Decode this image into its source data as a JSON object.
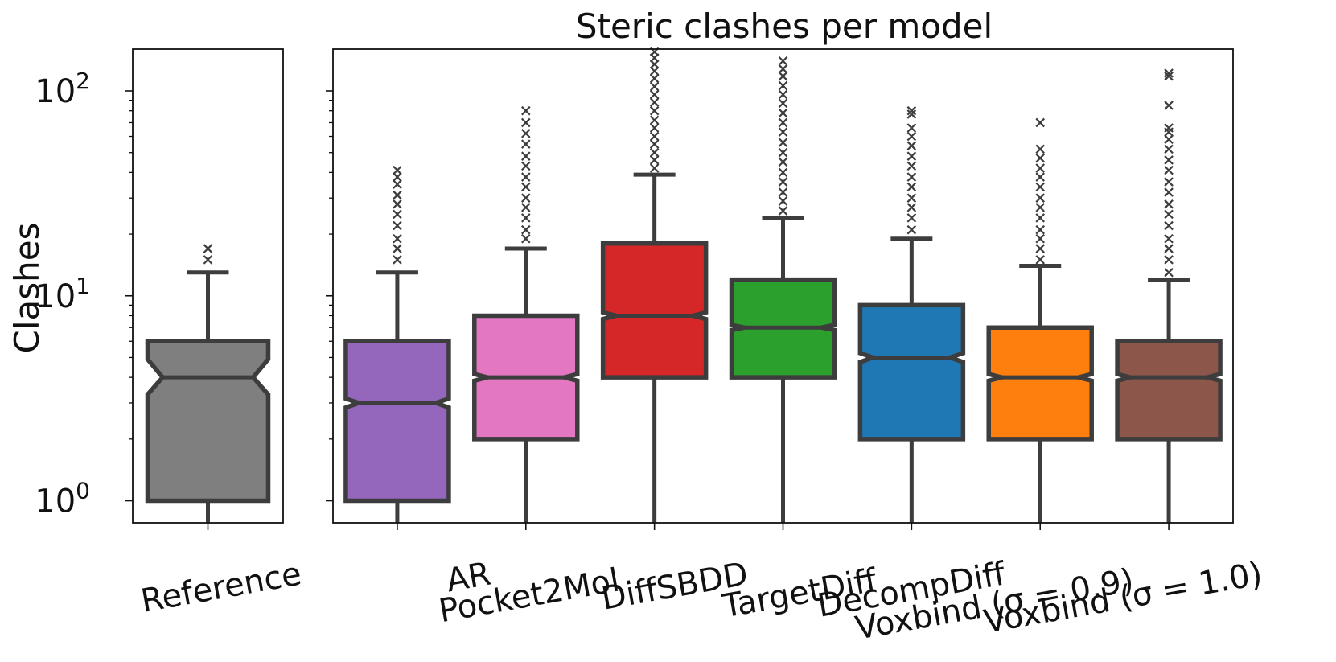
{
  "chart_data": {
    "type": "boxplot",
    "title": "Steric clashes per model",
    "ylabel": "Clashes",
    "yscale": "log",
    "ylim": [
      0.78,
      160
    ],
    "yticks": [
      {
        "value": 1,
        "base": "10",
        "exp": "0"
      },
      {
        "value": 10,
        "base": "10",
        "exp": "1"
      },
      {
        "value": 100,
        "base": "10",
        "exp": "2"
      }
    ],
    "notched": true,
    "panels": [
      {
        "name": "reference",
        "boxes": [
          {
            "label": "Reference",
            "color": "#7f7f7f",
            "q1": 1,
            "median": 4,
            "q3": 6,
            "notch_low": 3.3,
            "notch_high": 4.9,
            "whisker_low": 0.78,
            "whisker_high": 13,
            "outliers": [
              15,
              17
            ]
          }
        ]
      },
      {
        "name": "models",
        "boxes": [
          {
            "label": "AR",
            "color": "#9467bd",
            "q1": 1,
            "median": 3,
            "q3": 6,
            "notch_low": 2.85,
            "notch_high": 3.15,
            "whisker_low": 0.78,
            "whisker_high": 13,
            "outliers": [
              15,
              17,
              19,
              22,
              25,
              28,
              31,
              35,
              38,
              41
            ]
          },
          {
            "label": "Pocket2Mol",
            "color": "#e377c2",
            "q1": 2,
            "median": 4,
            "q3": 8,
            "notch_low": 3.85,
            "notch_high": 4.15,
            "whisker_low": 0.78,
            "whisker_high": 17,
            "outliers": [
              19,
              21,
              24,
              27,
              30,
              34,
              38,
              43,
              48,
              55,
              62,
              70,
              80
            ]
          },
          {
            "label": "DiffSBDD",
            "color": "#d62728",
            "q1": 4,
            "median": 8,
            "q3": 18,
            "notch_low": 7.7,
            "notch_high": 8.3,
            "whisker_low": 0.78,
            "whisker_high": 39,
            "outliers": [
              42,
              46,
              50,
              55,
              60,
              66,
              72,
              80,
              88,
              96,
              105,
              115,
              125,
              135,
              145,
              155
            ]
          },
          {
            "label": "TargetDiff",
            "color": "#2ca02c",
            "q1": 4,
            "median": 7,
            "q3": 12,
            "notch_low": 6.8,
            "notch_high": 7.2,
            "whisker_low": 0.78,
            "whisker_high": 24,
            "outliers": [
              26,
              29,
              32,
              36,
              40,
              45,
              50,
              56,
              63,
              70,
              78,
              87,
              96,
              106,
              118,
              128,
              140
            ]
          },
          {
            "label": "DecompDiff",
            "color": "#1f77b4",
            "q1": 2,
            "median": 5,
            "q3": 9,
            "notch_low": 4.75,
            "notch_high": 5.25,
            "whisker_low": 0.78,
            "whisker_high": 19,
            "outliers": [
              21,
              24,
              27,
              30,
              34,
              38,
              43,
              48,
              54,
              60,
              66,
              77,
              80
            ]
          },
          {
            "label": "Voxbind (σ = 0.9)",
            "color": "#ff7f0e",
            "q1": 2,
            "median": 4,
            "q3": 7,
            "notch_low": 3.85,
            "notch_high": 4.15,
            "whisker_low": 0.78,
            "whisker_high": 14,
            "outliers": [
              15,
              17,
              19,
              21,
              24,
              27,
              30,
              34,
              38,
              42,
              47,
              52,
              70
            ]
          },
          {
            "label": "Voxbind (σ = 1.0)",
            "color": "#8c564b",
            "q1": 2,
            "median": 4,
            "q3": 6,
            "notch_low": 3.85,
            "notch_high": 4.15,
            "whisker_low": 0.78,
            "whisker_high": 12,
            "outliers": [
              13,
              15,
              17,
              19,
              22,
              25,
              28,
              32,
              36,
              41,
              46,
              52,
              58,
              63,
              66,
              85,
              118,
              122
            ]
          }
        ]
      }
    ]
  }
}
